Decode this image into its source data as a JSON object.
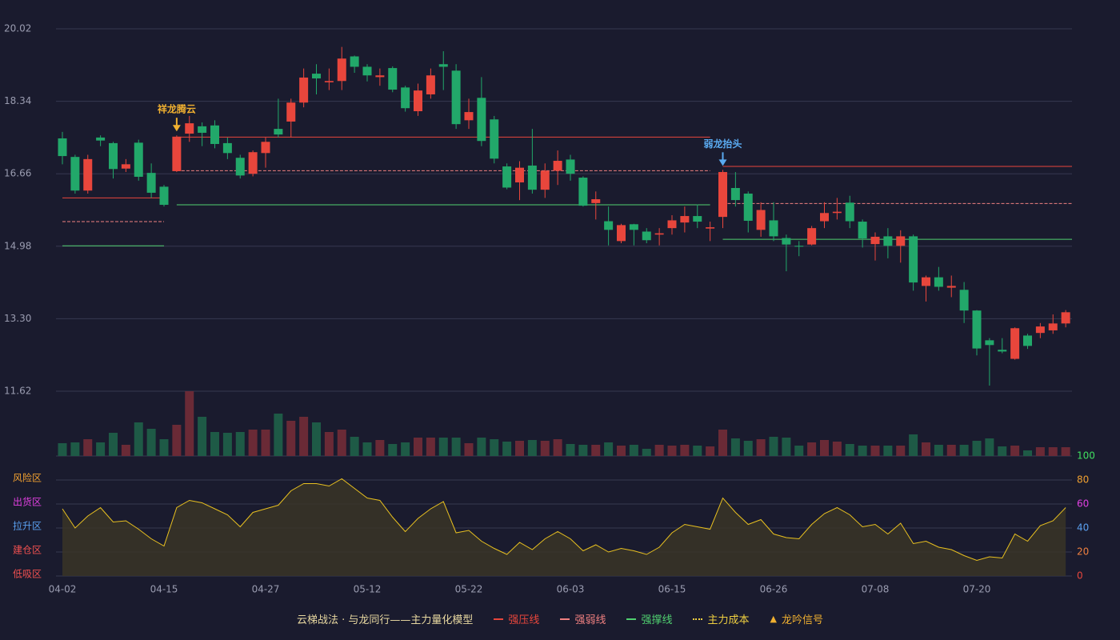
{
  "chart_data": {
    "type": "candlestick",
    "categories": [
      "04-02",
      null,
      null,
      null,
      null,
      null,
      null,
      null,
      "04-15",
      null,
      null,
      null,
      null,
      null,
      null,
      null,
      "04-27",
      null,
      null,
      null,
      null,
      null,
      null,
      null,
      "05-12",
      null,
      null,
      null,
      null,
      null,
      null,
      null,
      "05-22",
      null,
      null,
      null,
      null,
      null,
      null,
      null,
      "06-03",
      null,
      null,
      null,
      null,
      null,
      null,
      null,
      "06-15",
      null,
      null,
      null,
      null,
      null,
      null,
      null,
      "06-26",
      null,
      null,
      null,
      null,
      null,
      null,
      null,
      "07-08",
      null,
      null,
      null,
      null,
      null,
      null,
      null,
      "07-20",
      null,
      null,
      null,
      null,
      null,
      null,
      null
    ],
    "open": [
      17.48,
      17.05,
      16.27,
      17.5,
      17.37,
      16.78,
      17.38,
      16.68,
      16.36,
      16.72,
      17.59,
      17.76,
      17.78,
      17.37,
      17.03,
      16.66,
      17.14,
      17.7,
      17.87,
      18.31,
      18.98,
      18.78,
      18.81,
      19.38,
      19.14,
      18.9,
      19.11,
      18.66,
      18.11,
      18.5,
      19.2,
      19.05,
      17.9,
      18.42,
      17.92,
      16.83,
      16.46,
      16.85,
      16.29,
      16.73,
      16.99,
      16.57,
      15.98,
      15.56,
      15.1,
      15.49,
      15.32,
      15.25,
      15.4,
      15.53,
      15.68,
      15.39,
      15.66,
      16.33,
      16.2,
      15.36,
      15.58,
      15.17,
      14.99,
      15.02,
      15.56,
      15.75,
      15.99,
      15.55,
      15.03,
      15.21,
      14.99,
      15.21,
      14.06,
      14.26,
      14.02,
      13.97,
      13.49,
      12.8,
      12.58,
      12.37,
      12.91,
      12.97,
      13.03,
      13.19
    ],
    "high": [
      17.63,
      17.1,
      17.1,
      17.55,
      17.4,
      17.0,
      17.45,
      16.9,
      16.4,
      17.55,
      18.0,
      17.85,
      17.9,
      17.5,
      17.1,
      17.2,
      17.5,
      18.4,
      18.4,
      19.1,
      19.2,
      19.1,
      19.6,
      19.4,
      19.2,
      19.1,
      19.15,
      18.7,
      18.75,
      19.1,
      19.5,
      19.2,
      18.4,
      18.9,
      18.0,
      16.9,
      16.95,
      17.7,
      16.9,
      17.2,
      17.1,
      16.6,
      16.25,
      15.9,
      15.5,
      15.5,
      15.4,
      15.4,
      15.7,
      15.9,
      15.95,
      15.55,
      16.75,
      16.7,
      16.25,
      16.0,
      16.0,
      15.25,
      15.1,
      15.45,
      16.0,
      16.1,
      16.15,
      15.6,
      15.3,
      15.4,
      15.35,
      15.25,
      14.3,
      14.5,
      14.3,
      14.15,
      13.5,
      12.85,
      12.85,
      13.1,
      12.95,
      13.2,
      13.4,
      13.5
    ],
    "low": [
      16.88,
      16.2,
      16.2,
      17.3,
      16.55,
      16.7,
      16.5,
      16.1,
      15.9,
      16.7,
      17.4,
      17.3,
      17.25,
      17.0,
      16.55,
      16.6,
      16.8,
      17.5,
      17.5,
      18.2,
      18.5,
      18.6,
      18.6,
      19.0,
      18.8,
      18.7,
      18.55,
      18.1,
      18.0,
      18.4,
      18.6,
      17.7,
      17.7,
      17.3,
      16.9,
      16.3,
      16.05,
      16.2,
      16.1,
      16.4,
      16.5,
      15.9,
      15.6,
      15.0,
      15.05,
      15.0,
      15.05,
      15.0,
      15.25,
      15.3,
      15.4,
      15.1,
      15.4,
      15.9,
      15.3,
      15.2,
      15.1,
      14.4,
      14.75,
      15.0,
      15.4,
      15.6,
      15.4,
      14.95,
      14.65,
      14.7,
      14.6,
      13.95,
      13.7,
      13.95,
      13.8,
      13.2,
      12.45,
      11.75,
      12.5,
      12.35,
      12.6,
      12.85,
      12.95,
      13.1
    ],
    "close": [
      17.07,
      16.27,
      17.0,
      17.43,
      16.77,
      16.88,
      16.59,
      16.22,
      15.94,
      17.52,
      17.83,
      17.61,
      17.35,
      17.14,
      16.62,
      17.16,
      17.4,
      17.57,
      18.31,
      18.89,
      18.87,
      18.81,
      19.33,
      19.14,
      18.94,
      18.94,
      18.61,
      18.18,
      18.59,
      18.94,
      19.14,
      17.81,
      18.09,
      17.42,
      17.01,
      16.34,
      16.8,
      16.29,
      16.73,
      16.96,
      16.66,
      15.92,
      16.07,
      15.36,
      15.47,
      15.36,
      15.12,
      15.28,
      15.58,
      15.68,
      15.55,
      15.42,
      16.7,
      16.05,
      15.57,
      15.82,
      15.21,
      15.02,
      14.97,
      15.4,
      15.75,
      15.78,
      15.56,
      15.16,
      15.2,
      14.99,
      15.21,
      14.14,
      14.26,
      14.04,
      14.06,
      13.49,
      12.61,
      12.69,
      12.54,
      13.08,
      12.67,
      13.12,
      13.19,
      13.45
    ],
    "up_color": "#e8463c",
    "down_color": "#22a86a",
    "ylim": [
      11.62,
      20.02
    ],
    "yticks": [
      20.02,
      18.34,
      16.66,
      14.98,
      {
        "value": 13.3,
        "label": "13.30"
      },
      11.62
    ],
    "volume": [
      16,
      17,
      21,
      17,
      29,
      14,
      42,
      34,
      21,
      39,
      81,
      49,
      30,
      29,
      30,
      33,
      33,
      53,
      44,
      49,
      42,
      30,
      33,
      24,
      17,
      20,
      15,
      17,
      23,
      23,
      23,
      23,
      16,
      23,
      21,
      18,
      19,
      20,
      19,
      21,
      15,
      14,
      14,
      17,
      13,
      14,
      9,
      14,
      13,
      14,
      13,
      12,
      33,
      22,
      19,
      21,
      24,
      23,
      13,
      17,
      20,
      18,
      15,
      13,
      13,
      13,
      13,
      27,
      17,
      14,
      14,
      14,
      19,
      22,
      12,
      13,
      7,
      11,
      11,
      11
    ],
    "volume_ylim": [
      0,
      81
    ],
    "oscillator": {
      "color": "#e8c020",
      "values": [
        56,
        40,
        50,
        57,
        45,
        46,
        39,
        31,
        25,
        57,
        63,
        61,
        56,
        51,
        41,
        53,
        56,
        59,
        71,
        77,
        77,
        75,
        81,
        73,
        65,
        63,
        49,
        37,
        48,
        56,
        62,
        36,
        38,
        29,
        23,
        18,
        28,
        22,
        31,
        37,
        31,
        21,
        26,
        20,
        23,
        21,
        18,
        24,
        36,
        43,
        41,
        39,
        65,
        53,
        43,
        47,
        35,
        32,
        31,
        43,
        52,
        57,
        51,
        41,
        43,
        35,
        44,
        27,
        29,
        24,
        22,
        17,
        13,
        16,
        15,
        35,
        29,
        42,
        46,
        57
      ],
      "ylim": [
        0,
        100
      ],
      "yticks": [
        {
          "value": 0,
          "color": "#e8463c"
        },
        {
          "value": 20,
          "color": "#f08040"
        },
        {
          "value": 40,
          "color": "#5aa0f0"
        },
        {
          "value": 60,
          "color": "#e040e0"
        },
        {
          "value": 80,
          "color": "#f0a030"
        },
        {
          "value": 100,
          "color": "#40e060"
        }
      ],
      "zones": [
        {
          "value": 80,
          "label": "风险区",
          "color": "#f0a030"
        },
        {
          "value": 60,
          "label": "出货区",
          "color": "#e040e0"
        },
        {
          "value": 40,
          "label": "拉升区",
          "color": "#5aa0f0"
        },
        {
          "value": 20,
          "label": "建仓区",
          "color": "#f05050"
        },
        {
          "value": 0,
          "label": "低吸区",
          "color": "#f05050"
        }
      ]
    },
    "lines": [
      {
        "name": "强压线",
        "color": "#e8463c",
        "style": "solid",
        "values": [
          16.1,
          16.1,
          16.1,
          16.1,
          16.1,
          16.1,
          16.1,
          16.1,
          16.1,
          17.51,
          17.51,
          17.51,
          17.51,
          17.51,
          17.51,
          17.51,
          17.51,
          17.51,
          17.51,
          17.51,
          17.51,
          17.51,
          17.51,
          17.51,
          17.51,
          17.51,
          17.51,
          17.51,
          17.51,
          17.51,
          17.51,
          17.51,
          17.51,
          17.51,
          17.51,
          17.51,
          17.51,
          17.51,
          17.51,
          17.51,
          17.51,
          17.51,
          17.51,
          17.51,
          17.51,
          17.51,
          17.51,
          17.51,
          17.51,
          17.51,
          17.51,
          17.51,
          16.83,
          16.83,
          16.83,
          16.83,
          16.83,
          16.83,
          16.83,
          16.83,
          16.83,
          16.83,
          16.83,
          16.83,
          16.83,
          16.83,
          16.83,
          16.83,
          16.83,
          16.83,
          16.83,
          16.83,
          16.83,
          16.83,
          16.83,
          16.83,
          16.83,
          16.83,
          16.83,
          16.83
        ]
      },
      {
        "name": "强弱线",
        "color": "#f08080",
        "style": "dashed",
        "values": [
          15.55,
          15.55,
          15.55,
          15.55,
          15.55,
          15.55,
          15.55,
          15.55,
          15.55,
          16.73,
          16.73,
          16.73,
          16.73,
          16.73,
          16.73,
          16.73,
          16.73,
          16.73,
          16.73,
          16.73,
          16.73,
          16.73,
          16.73,
          16.73,
          16.73,
          16.73,
          16.73,
          16.73,
          16.73,
          16.73,
          16.73,
          16.73,
          16.73,
          16.73,
          16.73,
          16.73,
          16.73,
          16.73,
          16.73,
          16.73,
          16.73,
          16.73,
          16.73,
          16.73,
          16.73,
          16.73,
          16.73,
          16.73,
          16.73,
          16.73,
          16.73,
          16.73,
          15.97,
          15.97,
          15.97,
          15.97,
          15.97,
          15.97,
          15.97,
          15.97,
          15.97,
          15.97,
          15.97,
          15.97,
          15.97,
          15.97,
          15.97,
          15.97,
          15.97,
          15.97,
          15.97,
          15.97,
          15.97,
          15.97,
          15.97,
          15.97,
          15.97,
          15.97,
          15.97,
          15.97
        ]
      },
      {
        "name": "强撑线",
        "color": "#50d070",
        "style": "solid",
        "values": [
          14.99,
          14.99,
          14.99,
          14.99,
          14.99,
          14.99,
          14.99,
          14.99,
          14.99,
          15.94,
          15.94,
          15.94,
          15.94,
          15.94,
          15.94,
          15.94,
          15.94,
          15.94,
          15.94,
          15.94,
          15.94,
          15.94,
          15.94,
          15.94,
          15.94,
          15.94,
          15.94,
          15.94,
          15.94,
          15.94,
          15.94,
          15.94,
          15.94,
          15.94,
          15.94,
          15.94,
          15.94,
          15.94,
          15.94,
          15.94,
          15.94,
          15.94,
          15.94,
          15.94,
          15.94,
          15.94,
          15.94,
          15.94,
          15.94,
          15.94,
          15.94,
          15.94,
          15.14,
          15.14,
          15.14,
          15.14,
          15.14,
          15.14,
          15.14,
          15.14,
          15.14,
          15.14,
          15.14,
          15.14,
          15.14,
          15.14,
          15.14,
          15.14,
          15.14,
          15.14,
          15.14,
          15.14,
          15.14,
          15.14,
          15.14,
          15.14,
          15.14,
          15.14,
          15.14,
          15.14
        ]
      }
    ],
    "extra_legend": [
      {
        "name": "主力成本",
        "color": "#f0d040",
        "style": "dotted"
      },
      {
        "name": "龙吟信号",
        "color": "#f0b030",
        "style": "triangle"
      }
    ],
    "legend_title": "云梯战法 · 与龙同行——主力量化模型",
    "signals": [
      {
        "at": 9,
        "label": "祥龙腾云",
        "color": "#f0b030"
      },
      {
        "at": 52,
        "label": "弱龙抬头",
        "color": "#5aaaf0"
      }
    ]
  }
}
